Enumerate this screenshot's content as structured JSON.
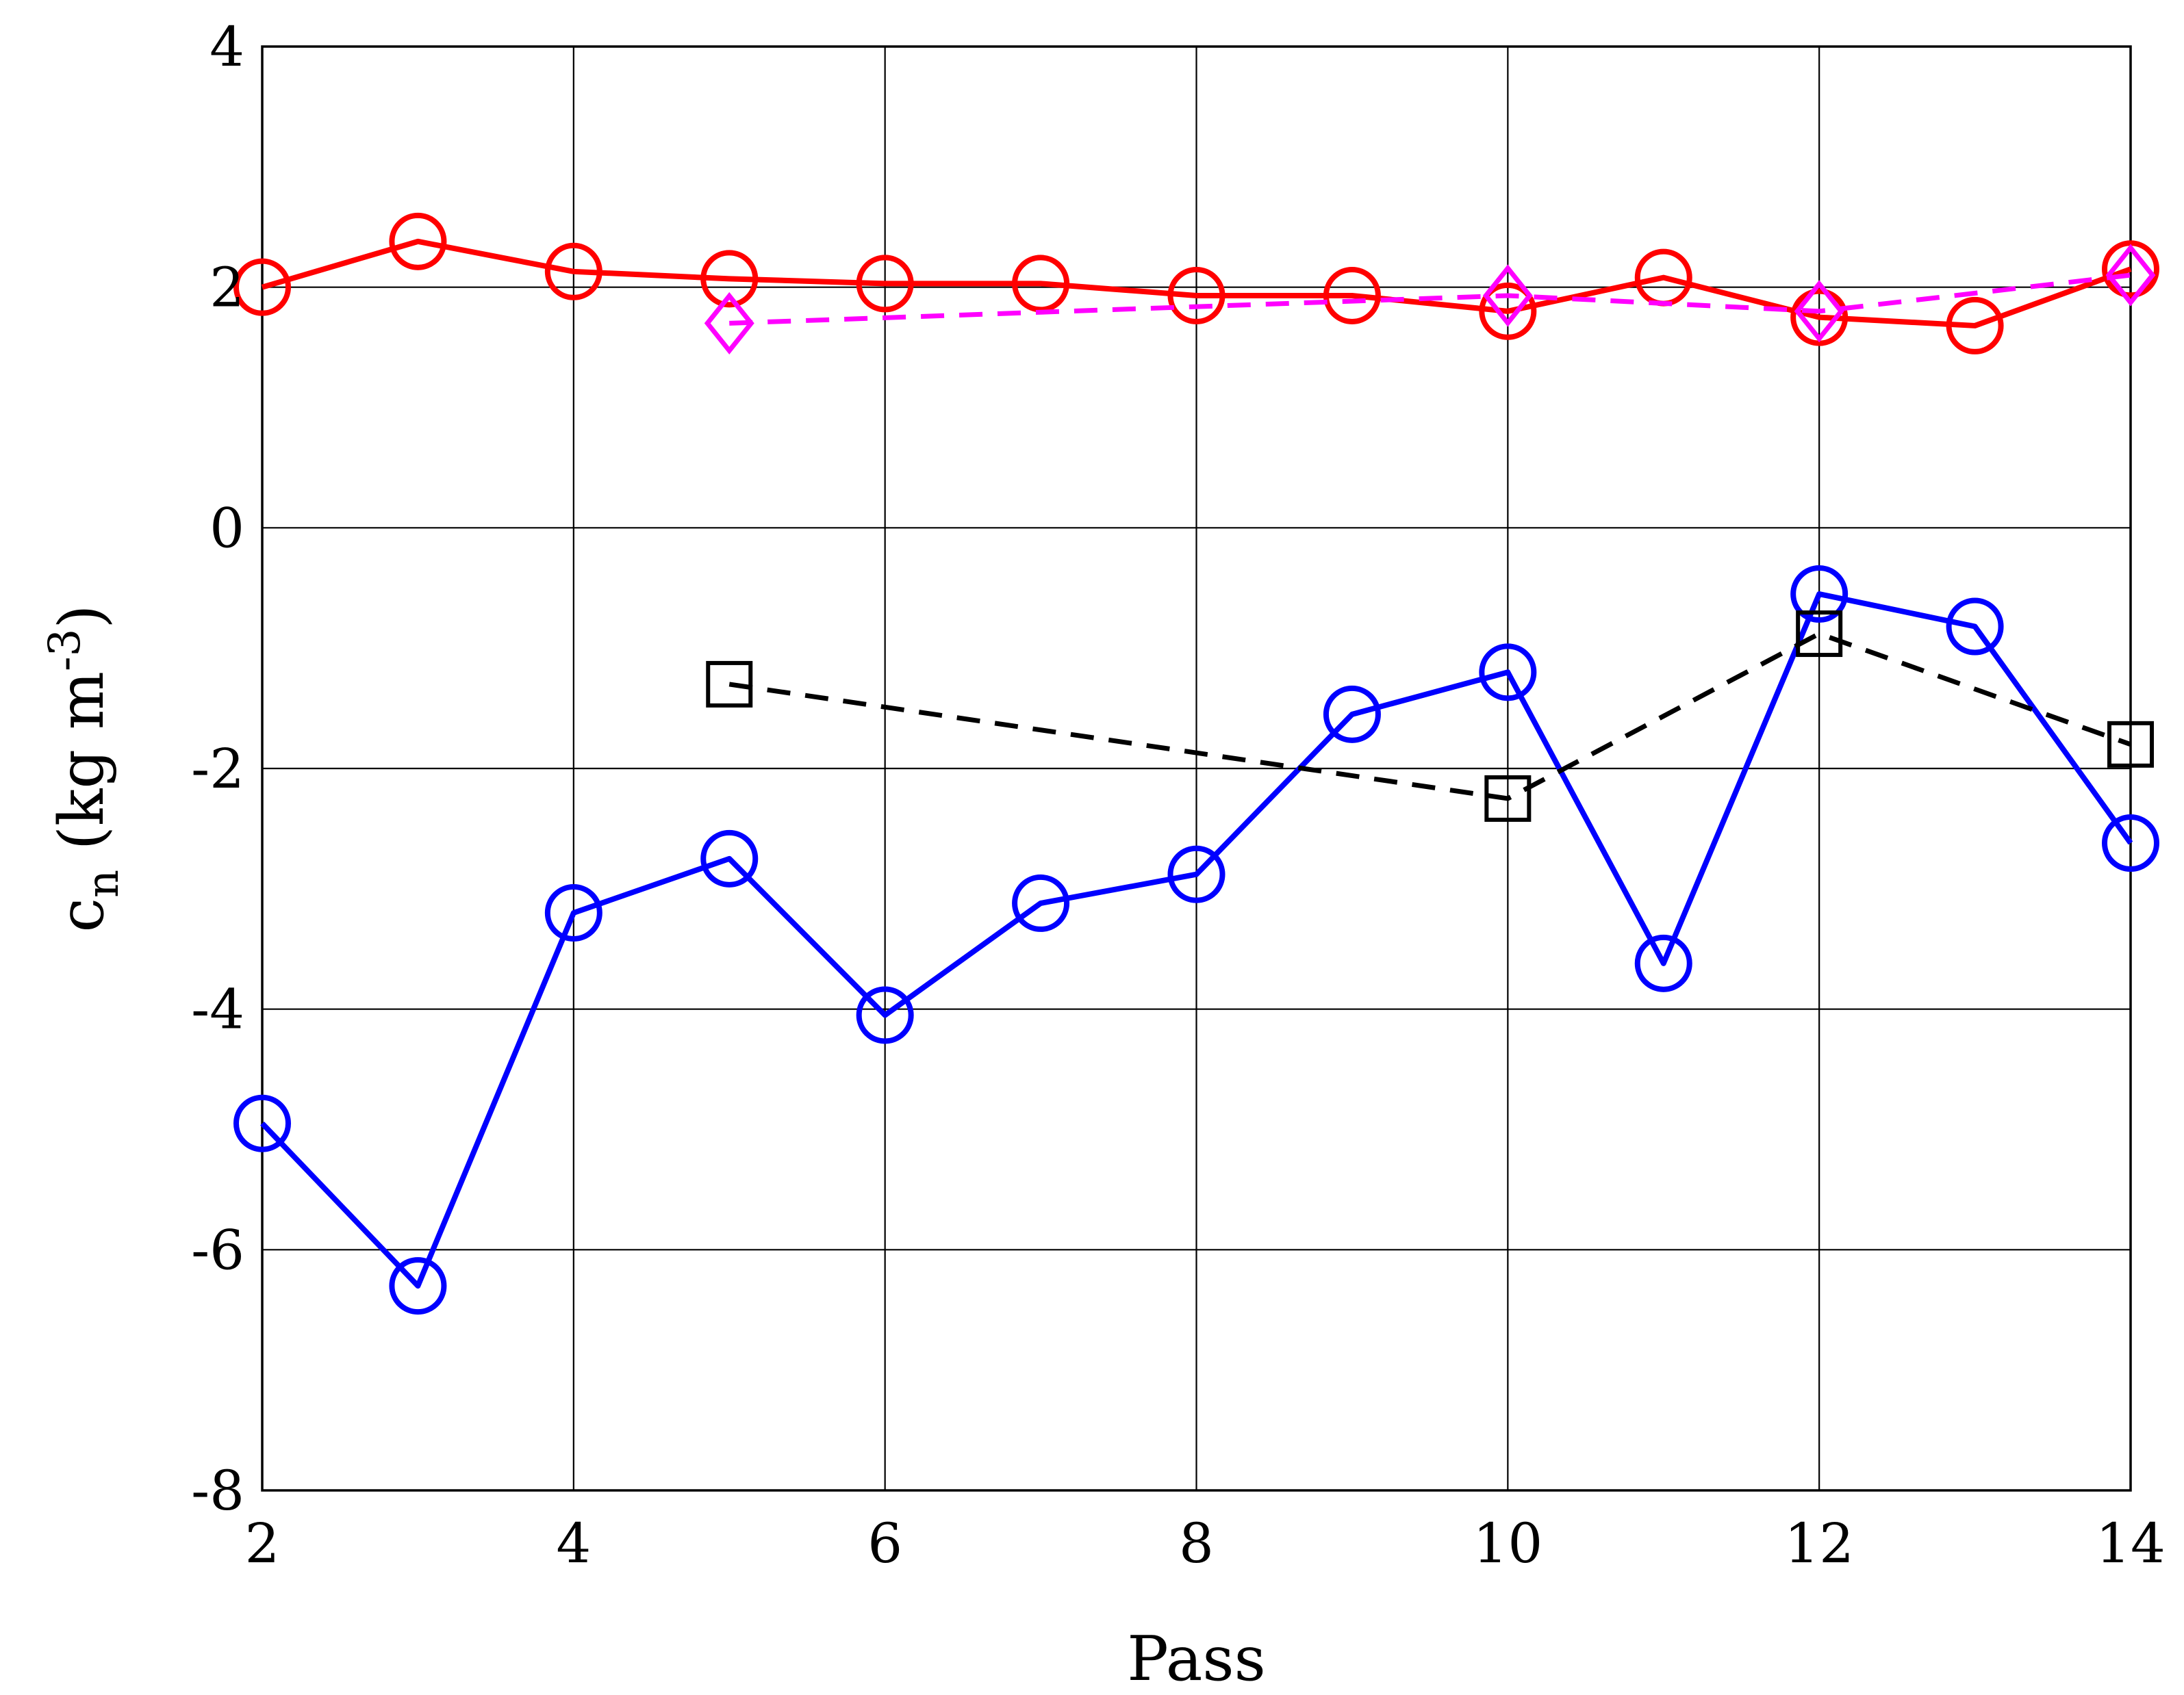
{
  "chart_data": {
    "type": "line",
    "xlabel": "Pass",
    "ylabel": {
      "base": "c",
      "subscript": "n",
      "unit_open": " (kg m",
      "superscript": "-3",
      "unit_close": ")"
    },
    "xlim": [
      2,
      14
    ],
    "ylim": [
      -8,
      4
    ],
    "xticks": [
      "2",
      "4",
      "6",
      "8",
      "10",
      "12",
      "14"
    ],
    "yticks": [
      "-8",
      "-6",
      "-4",
      "-2",
      "0",
      "2",
      "4"
    ],
    "grid": true,
    "legend": "none",
    "series": [
      {
        "color": "#ff0000",
        "line": "solid",
        "marker": "circle",
        "x": [
          2,
          3,
          4,
          5,
          6,
          7,
          8,
          9,
          10,
          11,
          12,
          13,
          14
        ],
        "y": [
          2.0,
          2.38,
          2.13,
          2.07,
          2.03,
          2.03,
          1.93,
          1.93,
          1.8,
          2.08,
          1.75,
          1.68,
          2.15
        ]
      },
      {
        "color": "#ff00ff",
        "line": "dashed",
        "marker": "diamond",
        "x": [
          5,
          10,
          12,
          14
        ],
        "y": [
          1.7,
          1.93,
          1.8,
          2.1
        ]
      },
      {
        "color": "#0000ff",
        "line": "solid",
        "marker": "circle",
        "x": [
          2,
          3,
          4,
          5,
          6,
          7,
          8,
          9,
          10,
          11,
          12,
          13,
          14
        ],
        "y": [
          -4.95,
          -6.3,
          -3.2,
          -2.75,
          -4.05,
          -3.12,
          -2.88,
          -1.55,
          -1.2,
          -3.62,
          -0.55,
          -0.82,
          -2.62
        ]
      },
      {
        "color": "#000000",
        "line": "dashed",
        "marker": "square",
        "x": [
          5,
          10,
          12,
          14
        ],
        "y": [
          -1.3,
          -2.25,
          -0.88,
          -1.8
        ]
      }
    ]
  }
}
